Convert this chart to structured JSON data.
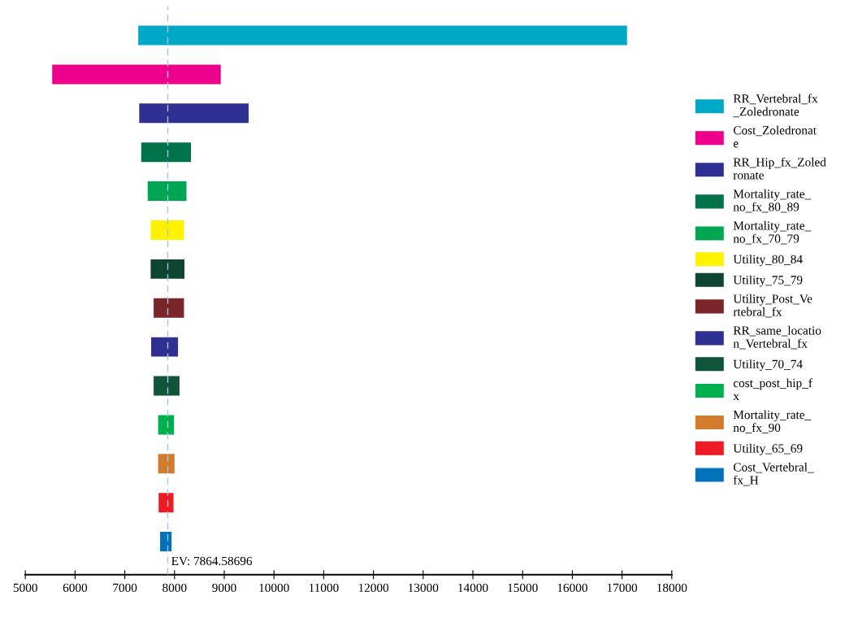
{
  "chart_data": {
    "type": "bar",
    "orientation": "horizontal",
    "categories": [
      null,
      null,
      null,
      null,
      null,
      null,
      null,
      null,
      null,
      null,
      null,
      null,
      null,
      null
    ],
    "series": [
      {
        "name": "RR_Vertebral_fx_Zoledronate",
        "color": "#00a8c8",
        "base": [
          7270,
          null,
          null,
          null,
          null,
          null,
          null,
          null,
          null,
          null,
          null,
          null,
          null,
          null
        ],
        "values": [
          9830,
          null,
          null,
          null,
          null,
          null,
          null,
          null,
          null,
          null,
          null,
          null,
          null,
          null
        ]
      },
      {
        "name": "Cost_Zoledronate",
        "color": "#ec008c",
        "base": [
          null,
          5540,
          null,
          null,
          null,
          null,
          null,
          null,
          null,
          null,
          null,
          null,
          null,
          null
        ],
        "values": [
          null,
          3390,
          null,
          null,
          null,
          null,
          null,
          null,
          null,
          null,
          null,
          null,
          null,
          null
        ]
      },
      {
        "name": "RR_Hip_fx_Zoledronate",
        "color": "#2e3192",
        "base": [
          null,
          null,
          7290,
          null,
          null,
          null,
          null,
          null,
          null,
          null,
          null,
          null,
          null,
          null
        ],
        "values": [
          null,
          null,
          2200,
          null,
          null,
          null,
          null,
          null,
          null,
          null,
          null,
          null,
          null,
          null
        ]
      },
      {
        "name": "Mortality_rate_no_fx_80_89",
        "color": "#00734a",
        "base": [
          null,
          null,
          null,
          7330,
          null,
          null,
          null,
          null,
          null,
          null,
          null,
          null,
          null,
          null
        ],
        "values": [
          null,
          null,
          null,
          1000,
          null,
          null,
          null,
          null,
          null,
          null,
          null,
          null,
          null,
          null
        ]
      },
      {
        "name": "Mortality_rate_no_fx_70_79",
        "color": "#00a651",
        "base": [
          null,
          null,
          null,
          null,
          7460,
          null,
          null,
          null,
          null,
          null,
          null,
          null,
          null,
          null
        ],
        "values": [
          null,
          null,
          null,
          null,
          780,
          null,
          null,
          null,
          null,
          null,
          null,
          null,
          null,
          null
        ]
      },
      {
        "name": "Utility_80_84",
        "color": "#fff200",
        "base": [
          null,
          null,
          null,
          null,
          null,
          7520,
          null,
          null,
          null,
          null,
          null,
          null,
          null,
          null
        ],
        "values": [
          null,
          null,
          null,
          null,
          null,
          670,
          null,
          null,
          null,
          null,
          null,
          null,
          null,
          null
        ]
      },
      {
        "name": "Utility_75_79",
        "color": "#0d4530",
        "base": [
          null,
          null,
          null,
          null,
          null,
          null,
          7520,
          null,
          null,
          null,
          null,
          null,
          null,
          null
        ],
        "values": [
          null,
          null,
          null,
          null,
          null,
          null,
          680,
          null,
          null,
          null,
          null,
          null,
          null,
          null
        ]
      },
      {
        "name": "Utility_Post_Vertebral_fx",
        "color": "#7a2528",
        "base": [
          null,
          null,
          null,
          null,
          null,
          null,
          null,
          7580,
          null,
          null,
          null,
          null,
          null,
          null
        ],
        "values": [
          null,
          null,
          null,
          null,
          null,
          null,
          null,
          610,
          null,
          null,
          null,
          null,
          null,
          null
        ]
      },
      {
        "name": "RR_same_location_Vertebral_fx",
        "color": "#2e3192",
        "base": [
          null,
          null,
          null,
          null,
          null,
          null,
          null,
          null,
          7530,
          null,
          null,
          null,
          null,
          null
        ],
        "values": [
          null,
          null,
          null,
          null,
          null,
          null,
          null,
          null,
          540,
          null,
          null,
          null,
          null,
          null
        ]
      },
      {
        "name": "Utility_70_74",
        "color": "#10553a",
        "base": [
          null,
          null,
          null,
          null,
          null,
          null,
          null,
          null,
          null,
          7580,
          null,
          null,
          null,
          null
        ],
        "values": [
          null,
          null,
          null,
          null,
          null,
          null,
          null,
          null,
          null,
          520,
          null,
          null,
          null,
          null
        ]
      },
      {
        "name": "cost_post_hip_fx",
        "color": "#00b04f",
        "base": [
          null,
          null,
          null,
          null,
          null,
          null,
          null,
          null,
          null,
          null,
          7670,
          null,
          null,
          null
        ],
        "values": [
          null,
          null,
          null,
          null,
          null,
          null,
          null,
          null,
          null,
          null,
          320,
          null,
          null,
          null
        ]
      },
      {
        "name": "Mortality_rate_no_fx_90",
        "color": "#d27b2c",
        "base": [
          null,
          null,
          null,
          null,
          null,
          null,
          null,
          null,
          null,
          null,
          null,
          7670,
          null,
          null
        ],
        "values": [
          null,
          null,
          null,
          null,
          null,
          null,
          null,
          null,
          null,
          null,
          null,
          330,
          null,
          null
        ]
      },
      {
        "name": "Utility_65_69",
        "color": "#ed1c24",
        "base": [
          null,
          null,
          null,
          null,
          null,
          null,
          null,
          null,
          null,
          null,
          null,
          null,
          7680,
          null
        ],
        "values": [
          null,
          null,
          null,
          null,
          null,
          null,
          null,
          null,
          null,
          null,
          null,
          null,
          300,
          null
        ]
      },
      {
        "name": "Cost_Vertebral_fx_H",
        "color": "#0072bc",
        "base": [
          null,
          null,
          null,
          null,
          null,
          null,
          null,
          null,
          null,
          null,
          null,
          null,
          null,
          7710
        ],
        "values": [
          null,
          null,
          null,
          null,
          null,
          null,
          null,
          null,
          null,
          null,
          null,
          null,
          null,
          230
        ]
      }
    ],
    "xlim": [
      5000,
      18000
    ],
    "xticks": [
      5000,
      6000,
      7000,
      8000,
      9000,
      10000,
      11000,
      12000,
      13000,
      14000,
      15000,
      16000,
      17000,
      18000
    ],
    "ref_lines": [
      {
        "axis": "x",
        "value": 7864.58696,
        "label": "EV: 7864.58696",
        "color": "#a8c4d8",
        "line_style": "dashed"
      }
    ],
    "tick_labels": "x",
    "grid": false,
    "legend": "right"
  }
}
